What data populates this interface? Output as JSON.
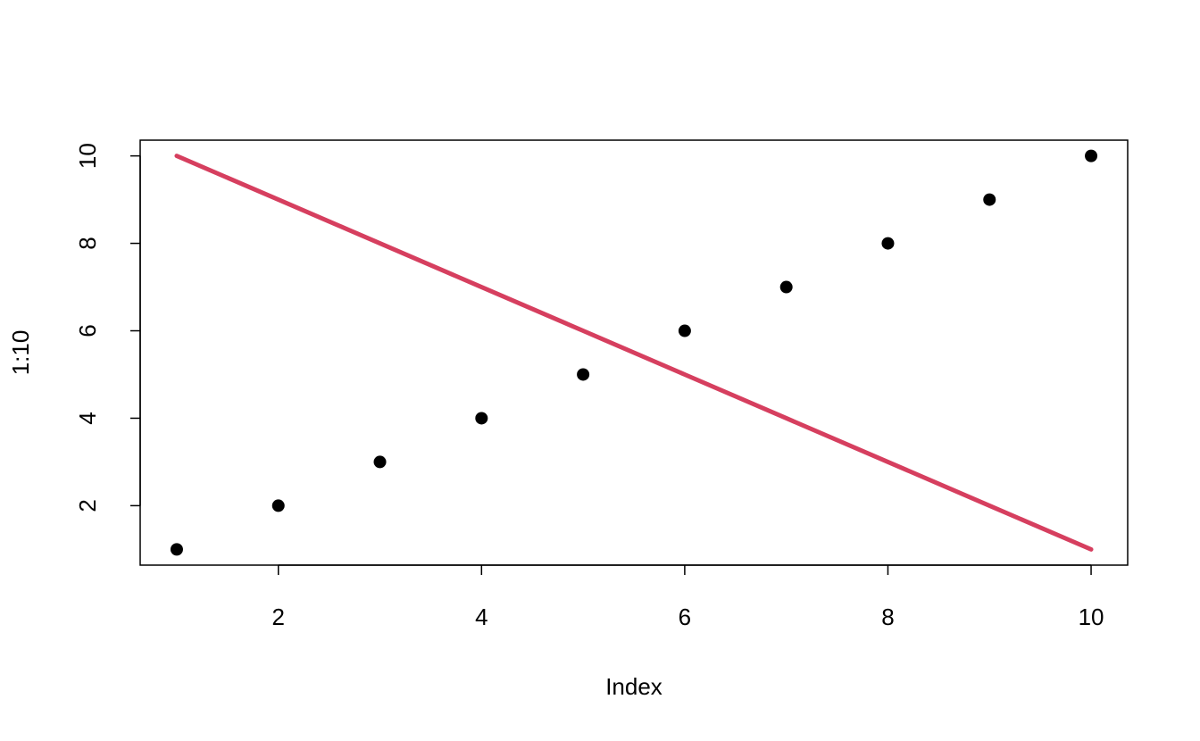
{
  "chart_data": {
    "type": "scatter",
    "x_label": "Index",
    "y_label": "1:10",
    "x": [
      1,
      2,
      3,
      4,
      5,
      6,
      7,
      8,
      9,
      10
    ],
    "series": [
      {
        "color": "#000000",
        "mark": "points",
        "values": [
          1,
          2,
          3,
          4,
          5,
          6,
          7,
          8,
          9,
          10
        ]
      },
      {
        "color": "#d63f5f",
        "mark": "line",
        "values": [
          10,
          9,
          8,
          7,
          6,
          5,
          4,
          3,
          2,
          1
        ]
      }
    ],
    "xlim": [
      0.64,
      10.36
    ],
    "ylim": [
      0.64,
      10.36
    ],
    "xticks": [
      2,
      4,
      6,
      8,
      10
    ],
    "yticks": [
      2,
      4,
      6,
      8,
      10
    ]
  }
}
